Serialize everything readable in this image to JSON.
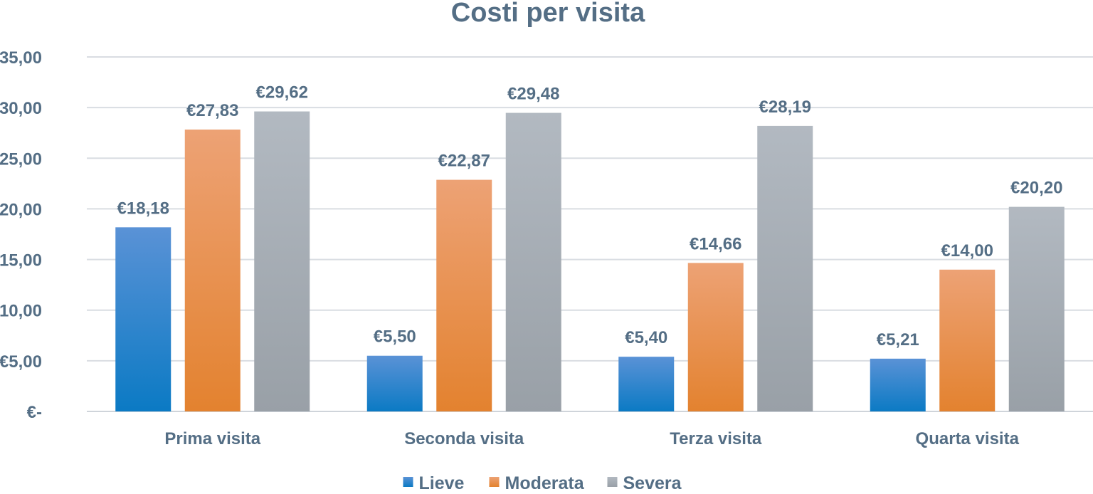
{
  "chart_data": {
    "type": "bar",
    "title": "Costi per visita",
    "xlabel": "",
    "ylabel": "",
    "categories": [
      "Prima visita",
      "Seconda visita",
      "Terza visita",
      "Quarta visita"
    ],
    "series": [
      {
        "name": "Lieve",
        "values": [
          18.18,
          5.5,
          5.4,
          5.21
        ],
        "labels": [
          "€18,18",
          "€5,50",
          "€5,40",
          "€5,21"
        ],
        "color_top": "#5a92d6",
        "color_bottom": "#0b7ac4"
      },
      {
        "name": "Moderata",
        "values": [
          27.83,
          22.87,
          14.66,
          14.0
        ],
        "labels": [
          "€27,83",
          "€22,87",
          "€14,66",
          "€14,00"
        ],
        "color_top": "#eda275",
        "color_bottom": "#e3822f"
      },
      {
        "name": "Severa",
        "values": [
          29.62,
          29.48,
          28.19,
          20.2
        ],
        "labels": [
          "€29,62",
          "€29,48",
          "€28,19",
          "€20,20"
        ],
        "color_top": "#b2b9c1",
        "color_bottom": "#99a0a7"
      }
    ],
    "ylim": [
      0,
      35
    ],
    "yticks": [
      0,
      5,
      10,
      15,
      20,
      25,
      30,
      35
    ],
    "ytick_labels": [
      "€-",
      "€5,00",
      "€10,00",
      "€15,00",
      "€20,00",
      "€25,00",
      "€30,00",
      "€35,00"
    ],
    "grid": true,
    "legend_position": "bottom",
    "colors": {
      "text": "#546e85",
      "grid": "#d9dde2",
      "axis": "#cfd4da"
    }
  }
}
